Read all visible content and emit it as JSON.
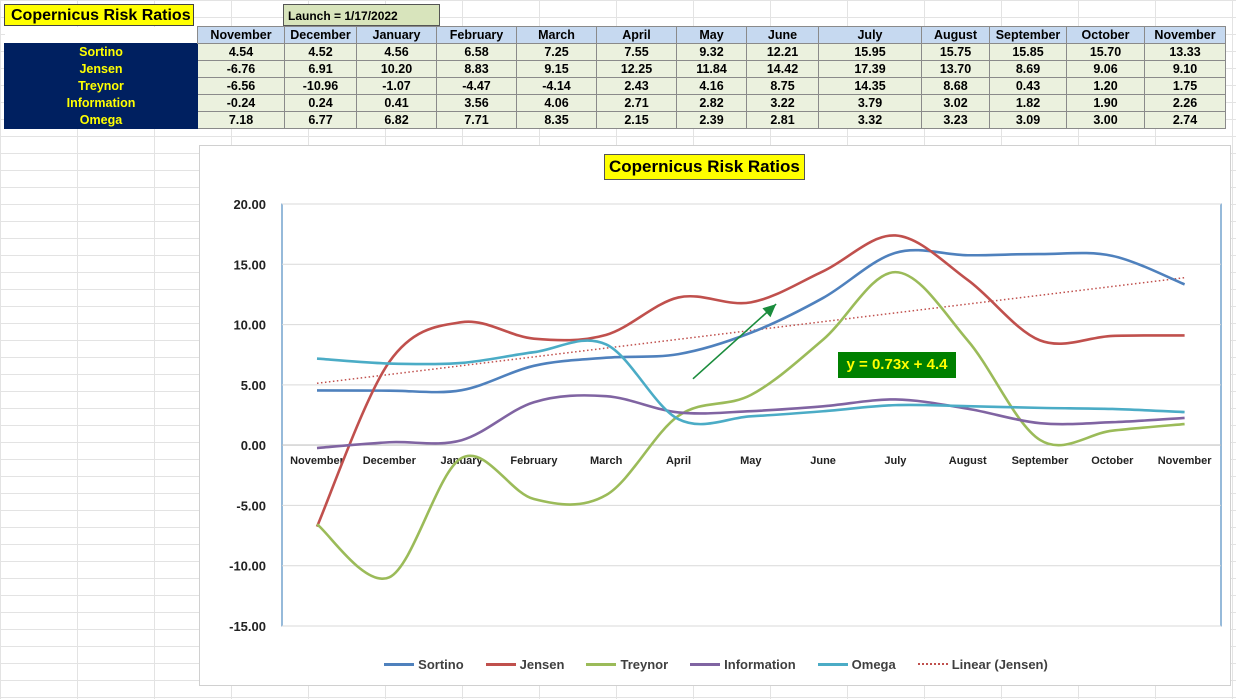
{
  "sheet": {
    "title": "Copernicus Risk Ratios",
    "launch": "Launch = 1/17/2022",
    "headers": [
      "November",
      "December",
      "January",
      "February",
      "March",
      "April",
      "May",
      "June",
      "July",
      "August",
      "September",
      "October",
      "November"
    ],
    "rows": [
      {
        "label": "Sortino",
        "values": [
          "4.54",
          "4.52",
          "4.56",
          "6.58",
          "7.25",
          "7.55",
          "9.32",
          "12.21",
          "15.95",
          "15.75",
          "15.85",
          "15.70",
          "13.33"
        ]
      },
      {
        "label": "Jensen",
        "values": [
          "-6.76",
          "6.91",
          "10.20",
          "8.83",
          "9.15",
          "12.25",
          "11.84",
          "14.42",
          "17.39",
          "13.70",
          "8.69",
          "9.06",
          "9.10"
        ]
      },
      {
        "label": "Treynor",
        "values": [
          "-6.56",
          "-10.96",
          "-1.07",
          "-4.47",
          "-4.14",
          "2.43",
          "4.16",
          "8.75",
          "14.35",
          "8.68",
          "0.43",
          "1.20",
          "1.75"
        ]
      },
      {
        "label": "Information",
        "values": [
          "-0.24",
          "0.24",
          "0.41",
          "3.56",
          "4.06",
          "2.71",
          "2.82",
          "3.22",
          "3.79",
          "3.02",
          "1.82",
          "1.90",
          "2.26"
        ]
      },
      {
        "label": "Omega",
        "values": [
          "7.18",
          "6.77",
          "6.82",
          "7.71",
          "8.35",
          "2.15",
          "2.39",
          "2.81",
          "3.32",
          "3.23",
          "3.09",
          "3.00",
          "2.74"
        ]
      }
    ]
  },
  "chart_data": {
    "type": "line",
    "title": "Copernicus Risk Ratios",
    "categories": [
      "November",
      "December",
      "January",
      "February",
      "March",
      "April",
      "May",
      "June",
      "July",
      "August",
      "September",
      "October",
      "November"
    ],
    "ylim": [
      -15,
      20
    ],
    "yticks": [
      "20.00",
      "15.00",
      "10.00",
      "5.00",
      "0.00",
      "-5.00",
      "-10.00",
      "-15.00"
    ],
    "grid": true,
    "legend_position": "bottom",
    "series": [
      {
        "name": "Sortino",
        "color": "#4f81bd",
        "values": [
          4.54,
          4.52,
          4.56,
          6.58,
          7.25,
          7.55,
          9.32,
          12.21,
          15.95,
          15.75,
          15.85,
          15.7,
          13.33
        ]
      },
      {
        "name": "Jensen",
        "color": "#c0504d",
        "values": [
          -6.76,
          6.91,
          10.2,
          8.83,
          9.15,
          12.25,
          11.84,
          14.42,
          17.39,
          13.7,
          8.69,
          9.06,
          9.1
        ]
      },
      {
        "name": "Treynor",
        "color": "#9bbb59",
        "values": [
          -6.56,
          -10.96,
          -1.07,
          -4.47,
          -4.14,
          2.43,
          4.16,
          8.75,
          14.35,
          8.68,
          0.43,
          1.2,
          1.75
        ]
      },
      {
        "name": "Information",
        "color": "#8064a2",
        "values": [
          -0.24,
          0.24,
          0.41,
          3.56,
          4.06,
          2.71,
          2.82,
          3.22,
          3.79,
          3.02,
          1.82,
          1.9,
          2.26
        ]
      },
      {
        "name": "Omega",
        "color": "#4bacc6",
        "values": [
          7.18,
          6.77,
          6.82,
          7.71,
          8.35,
          2.15,
          2.39,
          2.81,
          3.32,
          3.23,
          3.09,
          3.0,
          2.74
        ]
      }
    ],
    "trendline": {
      "name": "Linear (Jensen)",
      "color": "#c0504d",
      "slope": 0.73,
      "intercept": 4.4,
      "style": "dotted"
    },
    "annotation": {
      "text": "y = 0.73x + 4.4",
      "background": "#008000",
      "color": "#ffff00"
    },
    "arrow": {
      "color": "#1a8c3c",
      "from": {
        "x": 5.2,
        "y": 5.5
      },
      "to": {
        "x": 6.35,
        "y": 11.7
      }
    }
  }
}
